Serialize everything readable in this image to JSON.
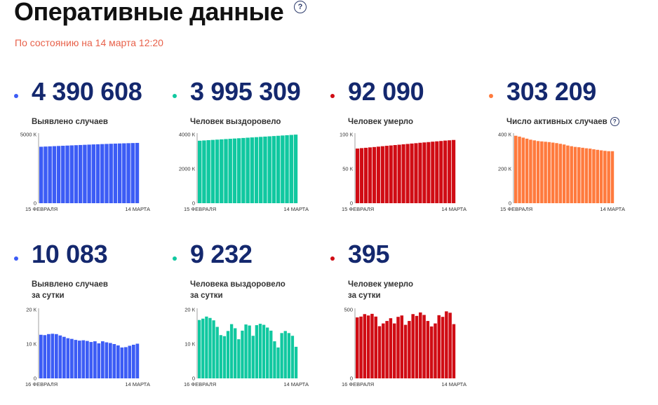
{
  "header": {
    "title": "Оперативные данные",
    "help": "?",
    "subtitle": "По состоянию на 14 марта 12:20"
  },
  "cards": [
    {
      "value": "4 390 608",
      "label": [
        "Выявлено случаев"
      ],
      "color": "#3c5cf5",
      "help": "",
      "x_start": "15 ФЕВРАЛЯ",
      "x_end": "14 МАРТА",
      "ticks": [
        {
          "v": 0,
          "label": "0"
        },
        {
          "v": 5000,
          "label": "5000 К"
        }
      ]
    },
    {
      "value": "3 995 309",
      "label": [
        "Человек выздоровело"
      ],
      "color": "#10c8a0",
      "help": "",
      "x_start": "15 ФЕВРАЛЯ",
      "x_end": "14 МАРТА",
      "ticks": [
        {
          "v": 0,
          "label": "0"
        },
        {
          "v": 2000,
          "label": "2000 К"
        },
        {
          "v": 4000,
          "label": "4000 К"
        }
      ]
    },
    {
      "value": "92 090",
      "label": [
        "Человек умерло"
      ],
      "color": "#d00c14",
      "help": "",
      "x_start": "15 ФЕВРАЛЯ",
      "x_end": "14 МАРТА",
      "ticks": [
        {
          "v": 0,
          "label": "0"
        },
        {
          "v": 50,
          "label": "50 К"
        },
        {
          "v": 100,
          "label": "100 К"
        }
      ]
    },
    {
      "value": "303 209",
      "label": [
        "Число активных случаев"
      ],
      "color": "#ff7a3d",
      "help": "?",
      "x_start": "15 ФЕВРАЛЯ",
      "x_end": "14 МАРТА",
      "ticks": [
        {
          "v": 0,
          "label": "0"
        },
        {
          "v": 200,
          "label": "200 К"
        },
        {
          "v": 400,
          "label": "400 К"
        }
      ]
    },
    {
      "value": "10 083",
      "label": [
        "Выявлено случаев",
        "за сутки"
      ],
      "color": "#3c5cf5",
      "help": "",
      "x_start": "16 ФЕВРАЛЯ",
      "x_end": "14 МАРТА",
      "ticks": [
        {
          "v": 0,
          "label": "0"
        },
        {
          "v": 10,
          "label": "10 К"
        },
        {
          "v": 20,
          "label": "20 К"
        }
      ]
    },
    {
      "value": "9 232",
      "label": [
        "Человека выздоровело",
        "за сутки"
      ],
      "color": "#10c8a0",
      "help": "",
      "x_start": "16 ФЕВРАЛЯ",
      "x_end": "14 МАРТА",
      "ticks": [
        {
          "v": 0,
          "label": "0"
        },
        {
          "v": 10,
          "label": "10 К"
        },
        {
          "v": 20,
          "label": "20 К"
        }
      ]
    },
    {
      "value": "395",
      "label": [
        "Человек умерло",
        "за сутки"
      ],
      "color": "#d00c14",
      "help": "",
      "x_start": "16 ФЕВРАЛЯ",
      "x_end": "14 МАРТА",
      "ticks": [
        {
          "v": 0,
          "label": "0"
        },
        {
          "v": 500,
          "label": "500"
        }
      ]
    }
  ],
  "chart_data": [
    {
      "type": "bar",
      "ylim": [
        0,
        5000
      ],
      "values": [
        4110,
        4125,
        4140,
        4154,
        4168,
        4182,
        4196,
        4210,
        4224,
        4238,
        4252,
        4266,
        4280,
        4292,
        4304,
        4316,
        4328,
        4340,
        4350,
        4360,
        4370,
        4380,
        4390
      ]
    },
    {
      "type": "bar",
      "ylim": [
        0,
        4000
      ],
      "values": [
        3640,
        3656,
        3672,
        3688,
        3704,
        3720,
        3736,
        3752,
        3768,
        3784,
        3800,
        3816,
        3832,
        3848,
        3864,
        3880,
        3896,
        3912,
        3928,
        3944,
        3960,
        3978,
        3995
      ]
    },
    {
      "type": "bar",
      "ylim": [
        0,
        100
      ],
      "values": [
        79.6,
        80.2,
        80.7,
        81.3,
        81.8,
        82.4,
        83.0,
        83.6,
        84.1,
        84.7,
        85.2,
        85.8,
        86.3,
        86.9,
        87.4,
        88.0,
        88.5,
        89.0,
        89.6,
        90.1,
        90.6,
        91.2,
        91.6,
        92.1
      ]
    },
    {
      "type": "bar",
      "ylim": [
        0,
        400
      ],
      "values": [
        393,
        388,
        382,
        376,
        370,
        366,
        362,
        360,
        358,
        356,
        353,
        350,
        346,
        342,
        336,
        332,
        328,
        326,
        323,
        320,
        318,
        314,
        311,
        308,
        305,
        303,
        303
      ]
    },
    {
      "type": "bar",
      "ylim": [
        0,
        20
      ],
      "values": [
        12.7,
        12.6,
        12.9,
        13.0,
        12.9,
        12.5,
        12.1,
        11.7,
        11.5,
        11.2,
        11.0,
        11.1,
        10.9,
        10.6,
        10.8,
        10.2,
        10.8,
        10.5,
        10.3,
        10.0,
        9.6,
        9.0,
        9.1,
        9.5,
        9.8,
        10.1
      ]
    },
    {
      "type": "bar",
      "ylim": [
        0,
        20
      ],
      "values": [
        17.0,
        17.4,
        18.0,
        17.6,
        16.9,
        15.0,
        12.6,
        12.3,
        13.8,
        15.8,
        14.6,
        11.4,
        13.9,
        15.7,
        15.4,
        12.4,
        15.5,
        15.9,
        15.6,
        14.8,
        13.9,
        10.8,
        9.0,
        13.2,
        13.8,
        13.2,
        12.4,
        9.2
      ]
    },
    {
      "type": "bar",
      "ylim": [
        0,
        500
      ],
      "values": [
        444,
        450,
        468,
        458,
        470,
        450,
        380,
        400,
        418,
        438,
        400,
        448,
        458,
        390,
        418,
        468,
        455,
        480,
        462,
        418,
        378,
        400,
        460,
        448,
        488,
        478,
        395
      ]
    }
  ]
}
